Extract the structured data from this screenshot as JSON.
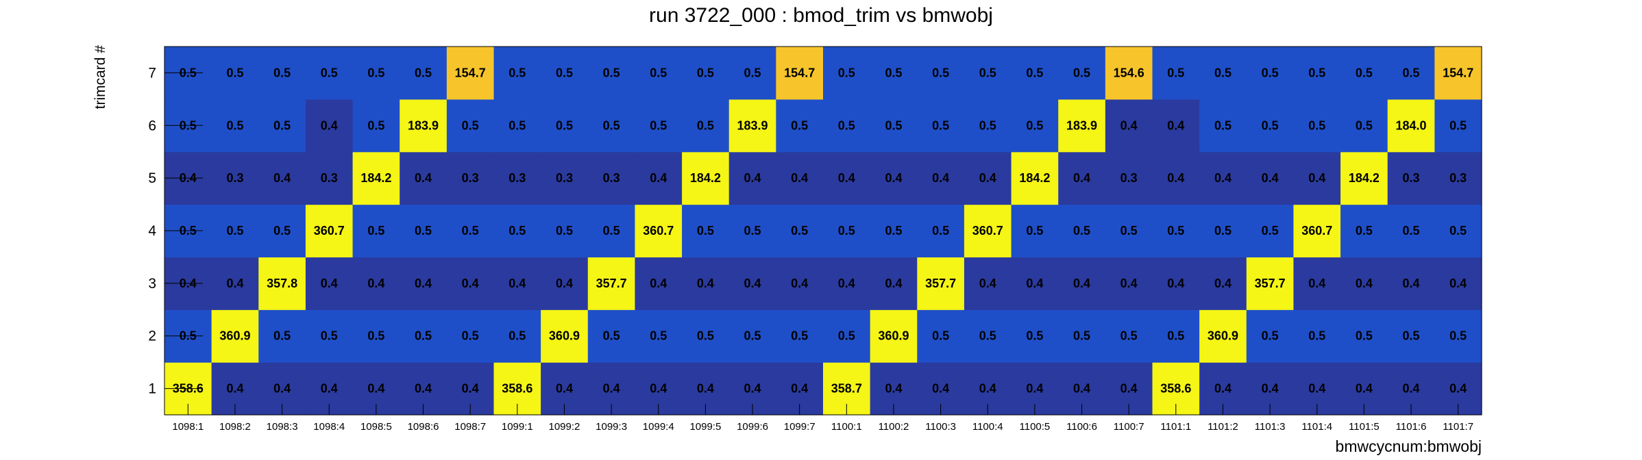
{
  "chart_data": {
    "type": "heatmap",
    "title": "run 3722_000 : bmod_trim vs bmwobj",
    "xlabel": "bmwcycnum:bmwobj",
    "ylabel": "trimcard #",
    "x_categories": [
      "1098:1",
      "1098:2",
      "1098:3",
      "1098:4",
      "1098:5",
      "1098:6",
      "1098:7",
      "1099:1",
      "1099:2",
      "1099:3",
      "1099:4",
      "1099:5",
      "1099:6",
      "1099:7",
      "1100:1",
      "1100:2",
      "1100:3",
      "1100:4",
      "1100:5",
      "1100:6",
      "1100:7",
      "1101:1",
      "1101:2",
      "1101:3",
      "1101:4",
      "1101:5",
      "1101:6",
      "1101:7"
    ],
    "y_categories": [
      "1",
      "2",
      "3",
      "4",
      "5",
      "6",
      "7"
    ],
    "values": [
      [
        358.6,
        0.4,
        0.4,
        0.4,
        0.4,
        0.4,
        0.4,
        358.6,
        0.4,
        0.4,
        0.4,
        0.4,
        0.4,
        0.4,
        358.7,
        0.4,
        0.4,
        0.4,
        0.4,
        0.4,
        0.4,
        358.6,
        0.4,
        0.4,
        0.4,
        0.4,
        0.4,
        0.4
      ],
      [
        0.5,
        360.9,
        0.5,
        0.5,
        0.5,
        0.5,
        0.5,
        0.5,
        360.9,
        0.5,
        0.5,
        0.5,
        0.5,
        0.5,
        0.5,
        360.9,
        0.5,
        0.5,
        0.5,
        0.5,
        0.5,
        0.5,
        360.9,
        0.5,
        0.5,
        0.5,
        0.5,
        0.5
      ],
      [
        0.4,
        0.4,
        357.8,
        0.4,
        0.4,
        0.4,
        0.4,
        0.4,
        0.4,
        357.7,
        0.4,
        0.4,
        0.4,
        0.4,
        0.4,
        0.4,
        357.7,
        0.4,
        0.4,
        0.4,
        0.4,
        0.4,
        0.4,
        357.7,
        0.4,
        0.4,
        0.4,
        0.4
      ],
      [
        0.5,
        0.5,
        0.5,
        360.7,
        0.5,
        0.5,
        0.5,
        0.5,
        0.5,
        0.5,
        360.7,
        0.5,
        0.5,
        0.5,
        0.5,
        0.5,
        0.5,
        360.7,
        0.5,
        0.5,
        0.5,
        0.5,
        0.5,
        0.5,
        360.7,
        0.5,
        0.5,
        0.5
      ],
      [
        0.4,
        0.3,
        0.4,
        0.3,
        184.2,
        0.4,
        0.3,
        0.3,
        0.3,
        0.3,
        0.4,
        184.2,
        0.4,
        0.4,
        0.4,
        0.4,
        0.4,
        0.4,
        184.2,
        0.4,
        0.3,
        0.4,
        0.4,
        0.4,
        0.4,
        184.2,
        0.3,
        0.3
      ],
      [
        0.5,
        0.5,
        0.5,
        0.4,
        0.5,
        183.9,
        0.5,
        0.5,
        0.5,
        0.5,
        0.5,
        0.5,
        183.9,
        0.5,
        0.5,
        0.5,
        0.5,
        0.5,
        0.5,
        183.9,
        0.4,
        0.4,
        0.5,
        0.5,
        0.5,
        0.5,
        184.0,
        0.5
      ],
      [
        0.5,
        0.5,
        0.5,
        0.5,
        0.5,
        0.5,
        154.7,
        0.5,
        0.5,
        0.5,
        0.5,
        0.5,
        0.5,
        154.7,
        0.5,
        0.5,
        0.5,
        0.5,
        0.5,
        0.5,
        154.6,
        0.5,
        0.5,
        0.5,
        0.5,
        0.5,
        0.5,
        154.7
      ]
    ],
    "color_scale": {
      "low_dark": "#2b3a9e",
      "low_mid": "#1f4fc8",
      "mid": "#f7c52b",
      "high": "#f5f516"
    },
    "grid": false,
    "legend": "none"
  }
}
